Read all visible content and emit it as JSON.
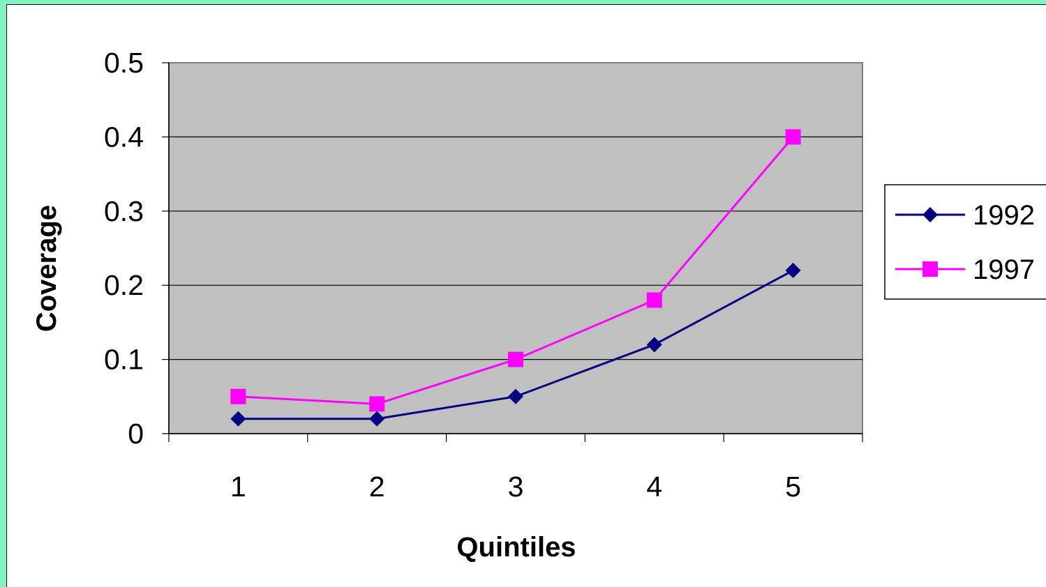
{
  "chart_data": {
    "type": "line",
    "title": "",
    "xlabel": "Quintiles",
    "ylabel": "Coverage",
    "categories": [
      "1",
      "2",
      "3",
      "4",
      "5"
    ],
    "ylim": [
      0,
      0.5
    ],
    "yticks": [
      "0",
      "0.1",
      "0.2",
      "0.3",
      "0.4",
      "0.5"
    ],
    "ytick_values": [
      0,
      0.1,
      0.2,
      0.3,
      0.4,
      0.5
    ],
    "grid": "horizontal",
    "plot_background": "#c0c0c0",
    "legend_position": "right",
    "series": [
      {
        "name": "1992",
        "values": [
          0.02,
          0.02,
          0.05,
          0.12,
          0.22
        ],
        "color": "#000080",
        "marker": "diamond"
      },
      {
        "name": "1997",
        "values": [
          0.05,
          0.04,
          0.1,
          0.18,
          0.4
        ],
        "color": "#ff00ff",
        "marker": "square"
      }
    ]
  }
}
